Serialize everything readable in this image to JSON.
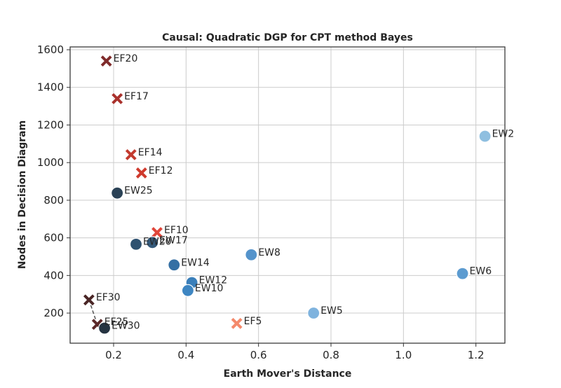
{
  "chart_data": {
    "type": "scatter",
    "title": "Causal: Quadratic DGP for CPT method Bayes",
    "xlabel": "Earth Mover's Distance",
    "ylabel": "Nodes in Decision Diagram",
    "xlim": [
      0.08,
      1.28
    ],
    "ylim": [
      40,
      1615
    ],
    "xticks": [
      0.2,
      0.4,
      0.6,
      0.8,
      1.0,
      1.2
    ],
    "xtick_labels": [
      "0.2",
      "0.4",
      "0.6",
      "0.8",
      "1.0",
      "1.2"
    ],
    "yticks": [
      200,
      400,
      600,
      800,
      1000,
      1200,
      1400,
      1600
    ],
    "ytick_labels": [
      "200",
      "400",
      "600",
      "800",
      "1000",
      "1200",
      "1400",
      "1600"
    ],
    "grid": true,
    "legend": "none",
    "connector": {
      "from": "EF30",
      "to": "EF25",
      "style": "dashed",
      "color": "#555555"
    },
    "points": [
      {
        "label": "EF20",
        "x": 0.18,
        "y": 1540,
        "marker": "x",
        "color": "#7f2a2a"
      },
      {
        "label": "EF17",
        "x": 0.21,
        "y": 1340,
        "marker": "x",
        "color": "#a9312c"
      },
      {
        "label": "EF14",
        "x": 0.248,
        "y": 1042,
        "marker": "x",
        "color": "#c33a2e"
      },
      {
        "label": "EF12",
        "x": 0.277,
        "y": 945,
        "marker": "x",
        "color": "#cf3a2d"
      },
      {
        "label": "EF10",
        "x": 0.32,
        "y": 628,
        "marker": "x",
        "color": "#e0463a"
      },
      {
        "label": "EF30",
        "x": 0.132,
        "y": 270,
        "marker": "x",
        "color": "#4a2626"
      },
      {
        "label": "EF25",
        "x": 0.155,
        "y": 140,
        "marker": "x",
        "color": "#5c2828"
      },
      {
        "label": "EF5",
        "x": 0.54,
        "y": 145,
        "marker": "x",
        "color": "#f4896b"
      },
      {
        "label": "EW25",
        "x": 0.21,
        "y": 838,
        "marker": "o",
        "color": "#2b4256"
      },
      {
        "label": "EW20",
        "x": 0.262,
        "y": 566,
        "marker": "o",
        "color": "#2f5270"
      },
      {
        "label": "EW17",
        "x": 0.307,
        "y": 575,
        "marker": "o",
        "color": "#34597a"
      },
      {
        "label": "EW14",
        "x": 0.367,
        "y": 456,
        "marker": "o",
        "color": "#3570a4"
      },
      {
        "label": "EW12",
        "x": 0.416,
        "y": 362,
        "marker": "o",
        "color": "#3a7fba"
      },
      {
        "label": "EW10",
        "x": 0.405,
        "y": 320,
        "marker": "o",
        "color": "#3e86c2"
      },
      {
        "label": "EW30",
        "x": 0.175,
        "y": 120,
        "marker": "o",
        "color": "#263442"
      },
      {
        "label": "EW8",
        "x": 0.58,
        "y": 510,
        "marker": "o",
        "color": "#5493cb"
      },
      {
        "label": "EW5",
        "x": 0.752,
        "y": 200,
        "marker": "o",
        "color": "#7fb3de"
      },
      {
        "label": "EW6",
        "x": 1.163,
        "y": 410,
        "marker": "o",
        "color": "#5c9bd0"
      },
      {
        "label": "EW2",
        "x": 1.225,
        "y": 1140,
        "marker": "o",
        "color": "#8fbfe0"
      }
    ]
  }
}
